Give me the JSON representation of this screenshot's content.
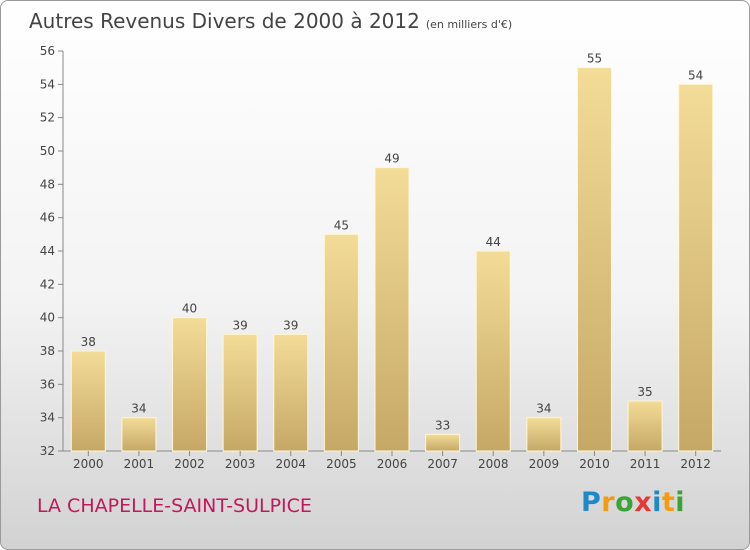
{
  "header": {
    "title": "Autres Revenus Divers de 2000 à 2012",
    "unit": "(en milliers d'€)"
  },
  "footer": {
    "commune": "LA CHAPELLE-SAINT-SULPICE",
    "logo_letters": [
      {
        "char": "P",
        "color": "#1e88c8"
      },
      {
        "char": "r",
        "color": "#f39c12"
      },
      {
        "char": "o",
        "color": "#3aa335"
      },
      {
        "char": "x",
        "color": "#e53935"
      },
      {
        "char": "i",
        "color": "#1e88c8"
      },
      {
        "char": "t",
        "color": "#f39c12"
      },
      {
        "char": "i",
        "color": "#3aa335"
      }
    ]
  },
  "chart_data": {
    "type": "bar",
    "categories": [
      "2000",
      "2001",
      "2002",
      "2003",
      "2004",
      "2005",
      "2006",
      "2007",
      "2008",
      "2009",
      "2010",
      "2011",
      "2012"
    ],
    "values": [
      38,
      34,
      40,
      39,
      39,
      45,
      49,
      33,
      44,
      34,
      55,
      35,
      54
    ],
    "title": "Autres Revenus Divers de 2000 à 2012",
    "subtitle": "(en milliers d'€)",
    "ylim": [
      32,
      56
    ],
    "yticks": [
      32,
      34,
      36,
      38,
      40,
      42,
      44,
      46,
      48,
      50,
      52,
      54,
      56
    ],
    "grid": false,
    "bar_color_light": "#f3dc98",
    "bar_color_dark": "#c6a866"
  }
}
